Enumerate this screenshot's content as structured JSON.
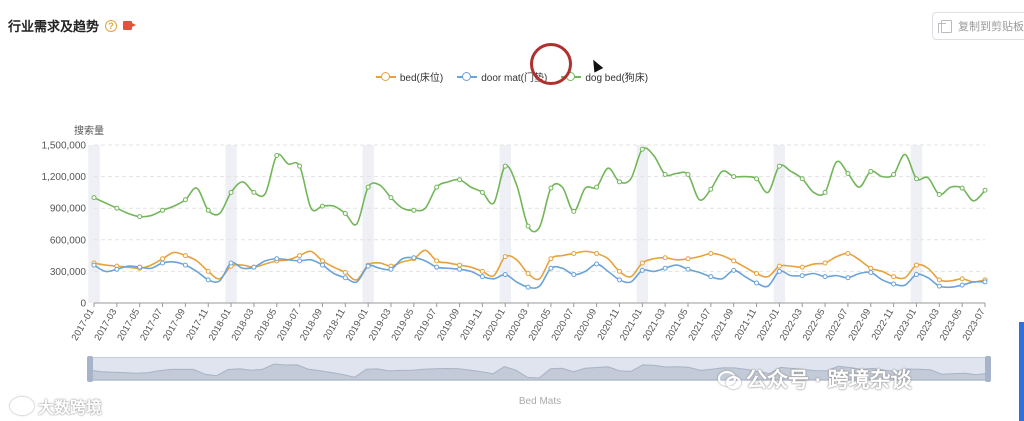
{
  "header": {
    "title": "行业需求及趋势",
    "help_icon": "?",
    "video_icon": "video-icon"
  },
  "toolbar": {
    "copy_label": "复制到剪贴板",
    "copy_icon": "copy-icon"
  },
  "legend": [
    {
      "name": "bed(床位)",
      "color": "#e6a23c"
    },
    {
      "name": "door mat(门垫)",
      "color": "#6aa3d8"
    },
    {
      "name": "dog bed(狗床)",
      "color": "#72b65a"
    }
  ],
  "chart_data": {
    "type": "line",
    "title": "行业需求及趋势",
    "ylabel": "搜索量",
    "xlabel": "",
    "ylim": [
      0,
      1500000
    ],
    "yticks": [
      0,
      300000,
      600000,
      900000,
      1200000,
      1500000
    ],
    "ytick_labels": [
      "0",
      "300,000",
      "600,000",
      "900,000",
      "1,200,000",
      "1,500,000"
    ],
    "x": [
      "2017-01",
      "2017-02",
      "2017-03",
      "2017-04",
      "2017-05",
      "2017-06",
      "2017-07",
      "2017-08",
      "2017-09",
      "2017-10",
      "2017-11",
      "2017-12",
      "2018-01",
      "2018-02",
      "2018-03",
      "2018-04",
      "2018-05",
      "2018-06",
      "2018-07",
      "2018-08",
      "2018-09",
      "2018-10",
      "2018-11",
      "2018-12",
      "2019-01",
      "2019-02",
      "2019-03",
      "2019-04",
      "2019-05",
      "2019-06",
      "2019-07",
      "2019-08",
      "2019-09",
      "2019-10",
      "2019-11",
      "2019-12",
      "2020-01",
      "2020-02",
      "2020-03",
      "2020-04",
      "2020-05",
      "2020-06",
      "2020-07",
      "2020-08",
      "2020-09",
      "2020-10",
      "2020-11",
      "2020-12",
      "2021-01",
      "2021-02",
      "2021-03",
      "2021-04",
      "2021-05",
      "2021-06",
      "2021-07",
      "2021-08",
      "2021-09",
      "2021-10",
      "2021-11",
      "2021-12",
      "2022-01",
      "2022-02",
      "2022-03",
      "2022-04",
      "2022-05",
      "2022-06",
      "2022-07",
      "2022-08",
      "2022-09",
      "2022-10",
      "2022-11",
      "2022-12",
      "2023-01",
      "2023-02",
      "2023-03",
      "2023-04",
      "2023-05",
      "2023-06",
      "2023-07"
    ],
    "x_tick_labels": [
      "2017-01",
      "2017-03",
      "2017-05",
      "2017-07",
      "2017-09",
      "2017-11",
      "2018-01",
      "2018-03",
      "2018-05",
      "2018-07",
      "2018-09",
      "2018-11",
      "2019-01",
      "2019-03",
      "2019-05",
      "2019-07",
      "2019-09",
      "2019-11",
      "2020-01",
      "2020-03",
      "2020-05",
      "2020-07",
      "2020-09",
      "2020-11",
      "2021-01",
      "2021-03",
      "2021-05",
      "2021-07",
      "2021-09",
      "2021-11",
      "2022-01",
      "2022-03",
      "2022-05",
      "2022-07",
      "2022-09",
      "2022-11",
      "2023-01",
      "2023-03",
      "2023-05",
      "2023-07"
    ],
    "highlight_months": [
      "2017-01",
      "2018-01",
      "2019-01",
      "2020-01",
      "2021-01",
      "2022-01",
      "2023-01"
    ],
    "grid": true,
    "legend_position": "top-center",
    "series": [
      {
        "name": "bed(床位)",
        "color": "#e6a23c",
        "values": [
          380000,
          360000,
          350000,
          340000,
          330000,
          360000,
          420000,
          480000,
          450000,
          400000,
          300000,
          230000,
          350000,
          360000,
          340000,
          370000,
          400000,
          410000,
          450000,
          490000,
          400000,
          340000,
          290000,
          220000,
          360000,
          380000,
          350000,
          390000,
          420000,
          500000,
          400000,
          380000,
          360000,
          340000,
          300000,
          260000,
          440000,
          410000,
          280000,
          230000,
          420000,
          450000,
          470000,
          490000,
          470000,
          420000,
          300000,
          250000,
          380000,
          420000,
          430000,
          410000,
          420000,
          440000,
          470000,
          450000,
          400000,
          340000,
          280000,
          250000,
          350000,
          350000,
          340000,
          370000,
          380000,
          440000,
          470000,
          410000,
          330000,
          300000,
          250000,
          240000,
          360000,
          330000,
          220000,
          210000,
          230000,
          200000,
          220000
        ]
      },
      {
        "name": "door mat(门垫)",
        "color": "#6aa3d8",
        "values": [
          360000,
          300000,
          320000,
          350000,
          340000,
          330000,
          380000,
          390000,
          360000,
          300000,
          220000,
          210000,
          380000,
          330000,
          340000,
          400000,
          420000,
          410000,
          400000,
          410000,
          360000,
          280000,
          240000,
          200000,
          350000,
          330000,
          320000,
          420000,
          430000,
          400000,
          340000,
          330000,
          320000,
          300000,
          250000,
          230000,
          270000,
          200000,
          150000,
          160000,
          330000,
          330000,
          270000,
          300000,
          370000,
          300000,
          220000,
          200000,
          310000,
          300000,
          330000,
          360000,
          320000,
          290000,
          250000,
          230000,
          310000,
          250000,
          190000,
          160000,
          300000,
          260000,
          260000,
          280000,
          250000,
          260000,
          240000,
          280000,
          290000,
          220000,
          180000,
          170000,
          270000,
          240000,
          160000,
          150000,
          170000,
          200000,
          200000
        ]
      },
      {
        "name": "dog bed(狗床)",
        "color": "#72b65a",
        "values": [
          1000000,
          950000,
          900000,
          850000,
          820000,
          830000,
          880000,
          920000,
          980000,
          1090000,
          880000,
          850000,
          1050000,
          1150000,
          1050000,
          1040000,
          1400000,
          1320000,
          1300000,
          900000,
          920000,
          920000,
          850000,
          750000,
          1100000,
          1120000,
          1000000,
          900000,
          880000,
          900000,
          1100000,
          1150000,
          1170000,
          1100000,
          1050000,
          950000,
          1300000,
          1120000,
          730000,
          720000,
          1090000,
          1100000,
          870000,
          1090000,
          1100000,
          1280000,
          1150000,
          1180000,
          1460000,
          1400000,
          1220000,
          1230000,
          1220000,
          980000,
          1080000,
          1250000,
          1200000,
          1200000,
          1180000,
          1050000,
          1300000,
          1250000,
          1180000,
          1050000,
          1050000,
          1340000,
          1230000,
          1100000,
          1250000,
          1200000,
          1220000,
          1410000,
          1180000,
          1190000,
          1030000,
          1100000,
          1090000,
          970000,
          1070000
        ]
      }
    ]
  },
  "zoom_slider": {
    "caption": "Bed Mats"
  },
  "watermarks": {
    "right_text": "公众号 · 跨境杂谈",
    "left_text": "大数跨境"
  }
}
